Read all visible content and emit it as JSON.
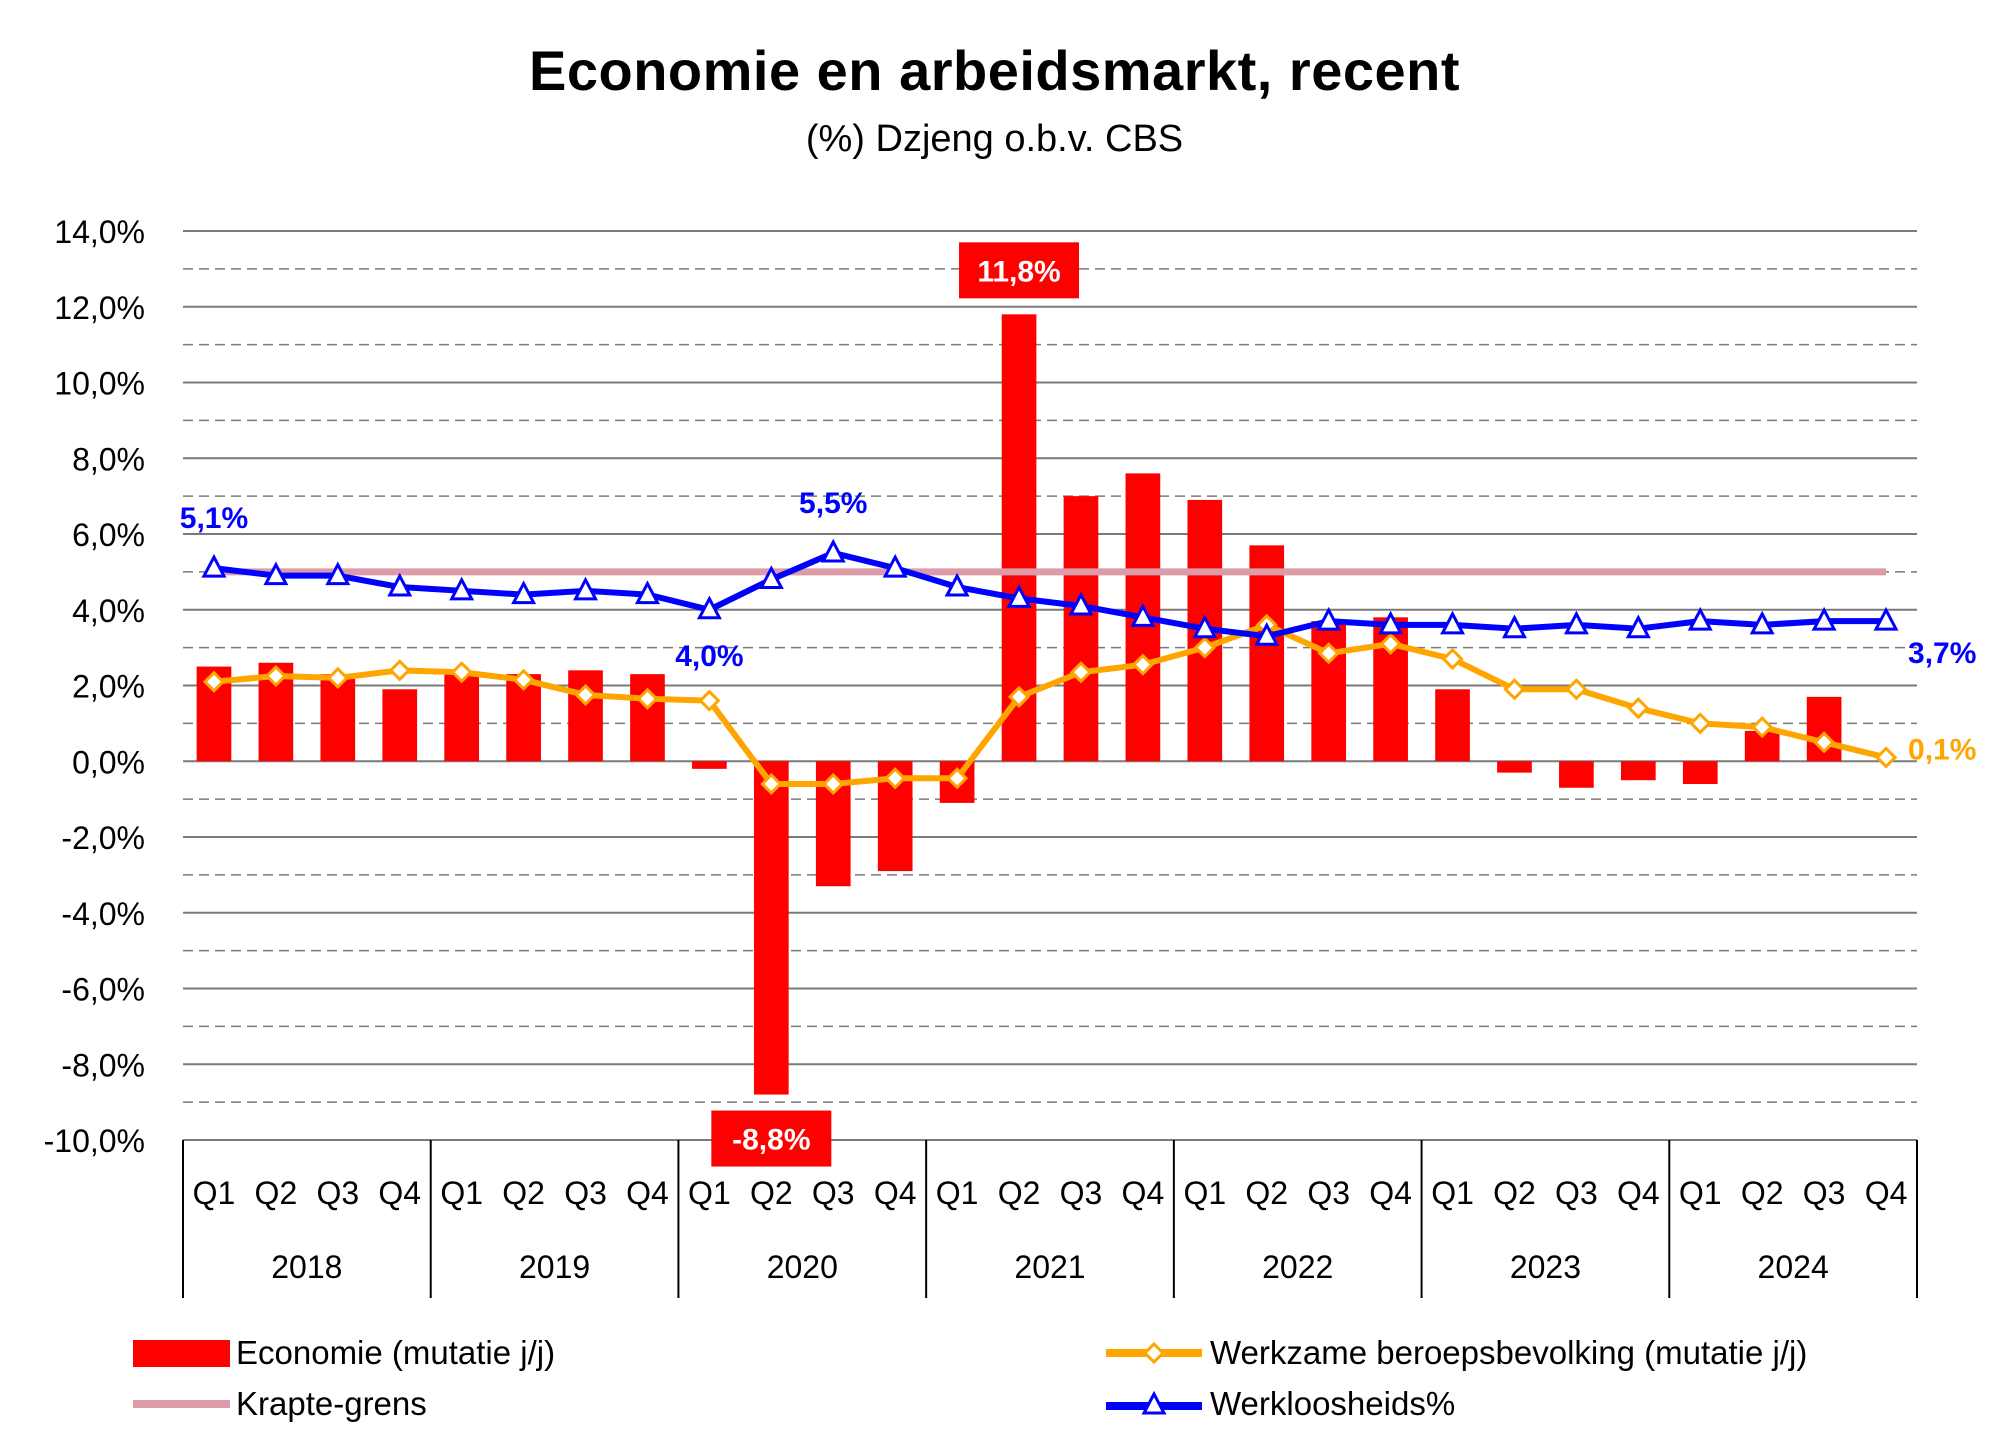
{
  "chart_data": {
    "type": "bar",
    "title": "Economie en arbeidsmarkt, recent",
    "subtitle": "(%) Dzjeng o.b.v. CBS",
    "ylim": [
      -10,
      14
    ],
    "y_ticks": [
      "14,0%",
      "12,0%",
      "10,0%",
      "8,0%",
      "6,0%",
      "4,0%",
      "2,0%",
      "0,0%",
      "-2,0%",
      "-4,0%",
      "-6,0%",
      "-8,0%",
      "-10,0%"
    ],
    "y_tick_values": [
      14,
      12,
      10,
      8,
      6,
      4,
      2,
      0,
      -2,
      -4,
      -6,
      -8,
      -10
    ],
    "grid": "solid major lines every 2,0%, dashed minor lines at odd values",
    "categories": [
      "Q1",
      "Q2",
      "Q3",
      "Q4",
      "Q1",
      "Q2",
      "Q3",
      "Q4",
      "Q1",
      "Q2",
      "Q3",
      "Q4",
      "Q1",
      "Q2",
      "Q3",
      "Q4",
      "Q1",
      "Q2",
      "Q3",
      "Q4",
      "Q1",
      "Q2",
      "Q3",
      "Q4",
      "Q1",
      "Q2",
      "Q3",
      "Q4"
    ],
    "years": [
      "2018",
      "2019",
      "2020",
      "2021",
      "2022",
      "2023",
      "2024"
    ],
    "series": [
      {
        "name": "Economie (mutatie j/j)",
        "type": "bar",
        "color": "#ff0000",
        "values": [
          2.5,
          2.6,
          2.3,
          1.9,
          2.3,
          2.3,
          2.4,
          2.3,
          -0.2,
          -8.8,
          -3.3,
          -2.9,
          -1.1,
          11.8,
          7.0,
          7.6,
          6.9,
          5.7,
          3.7,
          3.8,
          1.9,
          -0.3,
          -0.7,
          -0.5,
          -0.6,
          0.8,
          1.7,
          null
        ]
      },
      {
        "name": "Werkzame beroepsbevolking (mutatie j/j)",
        "type": "line",
        "color": "#ffa500",
        "marker": "diamond",
        "values": [
          2.1,
          2.25,
          2.2,
          2.4,
          2.35,
          2.15,
          1.75,
          1.65,
          1.6,
          -0.6,
          -0.6,
          -0.45,
          -0.45,
          1.7,
          2.35,
          2.55,
          3.0,
          3.6,
          2.85,
          3.1,
          2.7,
          1.9,
          1.9,
          1.4,
          1.0,
          0.9,
          0.5,
          0.1
        ]
      },
      {
        "name": "Krapte-grens",
        "type": "line",
        "color": "#dc9ba8",
        "values": [
          5.0,
          5.0,
          5.0,
          5.0,
          5.0,
          5.0,
          5.0,
          5.0,
          5.0,
          5.0,
          5.0,
          5.0,
          5.0,
          5.0,
          5.0,
          5.0,
          5.0,
          5.0,
          5.0,
          5.0,
          5.0,
          5.0,
          5.0,
          5.0,
          5.0,
          5.0,
          5.0,
          5.0
        ]
      },
      {
        "name": "Werkloosheids%",
        "type": "line",
        "color": "#0000ff",
        "marker": "triangle",
        "values": [
          5.1,
          4.9,
          4.9,
          4.6,
          4.5,
          4.4,
          4.5,
          4.4,
          4.0,
          4.8,
          5.5,
          5.1,
          4.6,
          4.3,
          4.1,
          3.8,
          3.5,
          3.3,
          3.7,
          3.6,
          3.6,
          3.5,
          3.6,
          3.5,
          3.7,
          3.6,
          3.7,
          3.7
        ]
      }
    ],
    "data_labels": [
      {
        "series": 0,
        "index": 13,
        "text": "11,8%"
      },
      {
        "series": 0,
        "index": 9,
        "text": "-8,8%"
      },
      {
        "series": 3,
        "index": 0,
        "text": "5,1%"
      },
      {
        "series": 3,
        "index": 8,
        "text": "4,0%"
      },
      {
        "series": 3,
        "index": 10,
        "text": "5,5%"
      },
      {
        "series": 3,
        "index": 27,
        "text": "3,7%"
      },
      {
        "series": 1,
        "index": 27,
        "text": "0,1%"
      }
    ],
    "legend": [
      "Economie (mutatie j/j)",
      "Werkzame beroepsbevolking (mutatie j/j)",
      "Krapte-grens",
      "Werkloosheids%"
    ],
    "legend_position": "bottom"
  }
}
